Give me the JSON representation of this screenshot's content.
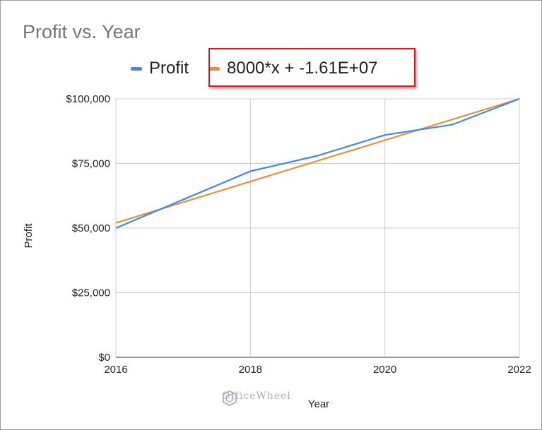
{
  "chart_data": {
    "type": "line",
    "title": "Profit vs. Year",
    "xlabel": "Year",
    "ylabel": "Profit",
    "x": [
      2016,
      2017,
      2018,
      2019,
      2020,
      2021,
      2022
    ],
    "xlim": [
      2016,
      2022
    ],
    "ylim": [
      0,
      100000
    ],
    "x_ticks": [
      "2016",
      "2018",
      "2020",
      "2022"
    ],
    "x_tick_values": [
      2016,
      2018,
      2020,
      2022
    ],
    "y_ticks": [
      "$0",
      "$25,000",
      "$50,000",
      "$75,000",
      "$100,000"
    ],
    "y_tick_values": [
      0,
      25000,
      50000,
      75000,
      100000
    ],
    "grid": true,
    "legend_position": "top",
    "series": [
      {
        "name": "Profit",
        "color": "#4285f4",
        "values": [
          50000,
          61000,
          72000,
          78000,
          86000,
          90000,
          100000
        ]
      },
      {
        "name": "8000*x + -1.61E+07",
        "color": "#e69138",
        "kind": "trendline",
        "values": [
          52000,
          60000,
          68000,
          76000,
          84000,
          92000,
          100000
        ]
      }
    ]
  },
  "watermark": "OfficeWheel",
  "colors": {
    "highlight_border": "#e0141c",
    "grid": "#cccccc"
  }
}
